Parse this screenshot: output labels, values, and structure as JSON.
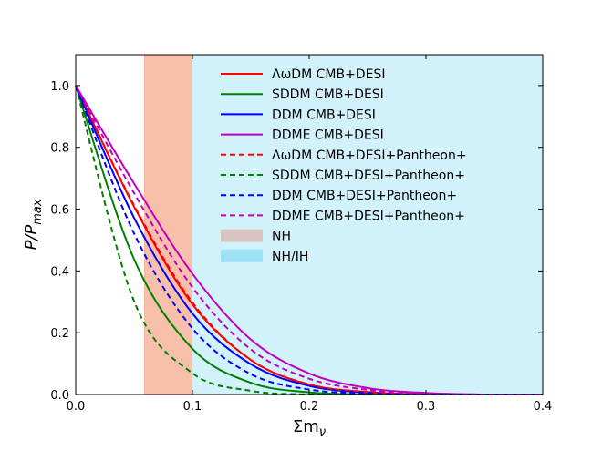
{
  "chart_data": {
    "type": "line",
    "title": "",
    "xlabel": "Σm_ν",
    "xlabel_parts": {
      "main": "Σm",
      "sub": "ν"
    },
    "ylabel": "P/P_max",
    "ylabel_parts": {
      "main": "P/P",
      "sub": "max"
    },
    "xlim": [
      0.0,
      0.4
    ],
    "ylim": [
      0.0,
      1.1
    ],
    "xticks": [
      0.0,
      0.1,
      0.2,
      0.3,
      0.4
    ],
    "xtick_labels": [
      "0.0",
      "0.1",
      "0.2",
      "0.3",
      "0.4"
    ],
    "yticks": [
      0.0,
      0.2,
      0.4,
      0.6,
      0.8,
      1.0
    ],
    "ytick_labels": [
      "0.0",
      "0.2",
      "0.4",
      "0.6",
      "0.8",
      "1.0"
    ],
    "grid": false,
    "legend_position": "upper-right",
    "bands": [
      {
        "name": "NH",
        "xmin": 0.059,
        "xmax": 0.1,
        "color": "#f7b59b",
        "legend_color": "#d8c5c1"
      },
      {
        "name": "NH/IH",
        "xmin": 0.1,
        "xmax": 0.4,
        "color": "#c9eefa",
        "legend_color": "#9fe1f5"
      }
    ],
    "series": [
      {
        "name": "ΛωDM CMB+DESI",
        "color": "#ff0000",
        "dash": "solid",
        "x": [
          0.0,
          0.05,
          0.1,
          0.15,
          0.2,
          0.25,
          0.3,
          0.35,
          0.4
        ],
        "y": [
          1.0,
          0.608,
          0.292,
          0.112,
          0.032,
          0.008,
          0.0,
          0.0,
          0.0
        ]
      },
      {
        "name": "SDDM CMB+DESI",
        "color": "#008000",
        "dash": "solid",
        "x": [
          0.0,
          0.05,
          0.1,
          0.15,
          0.2,
          0.25,
          0.3,
          0.35,
          0.4
        ],
        "y": [
          1.0,
          0.438,
          0.148,
          0.038,
          0.007,
          0.0,
          0.0,
          0.0,
          0.0
        ]
      },
      {
        "name": "DDM CMB+DESI",
        "color": "#0000ff",
        "dash": "solid",
        "x": [
          0.0,
          0.05,
          0.1,
          0.15,
          0.2,
          0.25,
          0.3,
          0.35,
          0.4
        ],
        "y": [
          1.0,
          0.572,
          0.262,
          0.098,
          0.028,
          0.006,
          0.0,
          0.0,
          0.0
        ]
      },
      {
        "name": "DDME CMB+DESI",
        "color": "#c000c0",
        "dash": "solid",
        "x": [
          0.0,
          0.05,
          0.1,
          0.15,
          0.2,
          0.25,
          0.3,
          0.35,
          0.4
        ],
        "y": [
          1.0,
          0.683,
          0.391,
          0.178,
          0.068,
          0.021,
          0.005,
          0.0,
          0.0
        ]
      },
      {
        "name": "ΛωDM CMB+DESI+Pantheon+",
        "color": "#ff0000",
        "dash": "dashed",
        "x": [
          0.0,
          0.05,
          0.1,
          0.15,
          0.2,
          0.25,
          0.3,
          0.35,
          0.4
        ],
        "y": [
          1.0,
          0.612,
          0.298,
          0.112,
          0.033,
          0.008,
          0.0,
          0.0,
          0.0
        ]
      },
      {
        "name": "SDDM CMB+DESI+Pantheon+",
        "color": "#008000",
        "dash": "dashed",
        "x": [
          0.0,
          0.05,
          0.1,
          0.15,
          0.2,
          0.25,
          0.3,
          0.35,
          0.4
        ],
        "y": [
          1.0,
          0.302,
          0.069,
          0.012,
          0.0,
          0.0,
          0.0,
          0.0,
          0.0
        ]
      },
      {
        "name": "DDM CMB+DESI+Pantheon+",
        "color": "#0000ff",
        "dash": "dashed",
        "x": [
          0.0,
          0.05,
          0.1,
          0.15,
          0.2,
          0.25,
          0.3,
          0.35,
          0.4
        ],
        "y": [
          1.0,
          0.521,
          0.214,
          0.066,
          0.016,
          0.003,
          0.0,
          0.0,
          0.0
        ]
      },
      {
        "name": "DDME CMB+DESI+Pantheon+",
        "color": "#c000c0",
        "dash": "dashed",
        "x": [
          0.0,
          0.05,
          0.1,
          0.15,
          0.2,
          0.25,
          0.3,
          0.35,
          0.4
        ],
        "y": [
          1.0,
          0.652,
          0.347,
          0.146,
          0.051,
          0.015,
          0.003,
          0.0,
          0.0
        ]
      }
    ]
  }
}
